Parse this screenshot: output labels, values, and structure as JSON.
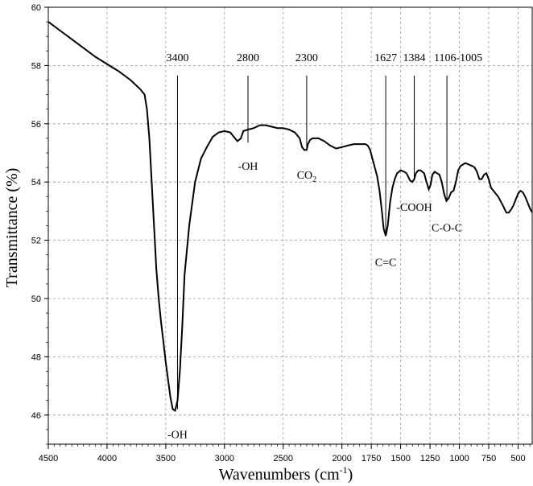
{
  "chart_data": {
    "type": "line",
    "xlabel_main": "Wavenumbers (cm",
    "xlabel_sup": "-1",
    "xlabel_end": ")",
    "ylabel": "Transmittance (%)",
    "xlim": [
      4500,
      380
    ],
    "ylim": [
      45,
      60
    ],
    "grid": true,
    "x_ticks": [
      4500,
      4000,
      3500,
      3000,
      2500,
      2000,
      1750,
      1500,
      1250,
      1000,
      750,
      500
    ],
    "y_ticks": [
      46,
      48,
      50,
      52,
      54,
      56,
      58,
      60
    ],
    "series": [
      {
        "points": [
          [
            4500,
            59.5
          ],
          [
            4400,
            59.2
          ],
          [
            4300,
            58.9
          ],
          [
            4200,
            58.6
          ],
          [
            4100,
            58.3
          ],
          [
            4000,
            58.05
          ],
          [
            3900,
            57.8
          ],
          [
            3800,
            57.5
          ],
          [
            3720,
            57.2
          ],
          [
            3680,
            57.0
          ],
          [
            3660,
            56.5
          ],
          [
            3640,
            55.5
          ],
          [
            3620,
            54.0
          ],
          [
            3600,
            52.5
          ],
          [
            3580,
            51.0
          ],
          [
            3560,
            50.0
          ],
          [
            3540,
            49.2
          ],
          [
            3520,
            48.5
          ],
          [
            3500,
            47.8
          ],
          [
            3480,
            47.2
          ],
          [
            3460,
            46.6
          ],
          [
            3440,
            46.2
          ],
          [
            3420,
            46.15
          ],
          [
            3400,
            46.5
          ],
          [
            3380,
            47.5
          ],
          [
            3360,
            49.0
          ],
          [
            3340,
            50.8
          ],
          [
            3300,
            52.5
          ],
          [
            3250,
            54.0
          ],
          [
            3200,
            54.8
          ],
          [
            3150,
            55.2
          ],
          [
            3100,
            55.55
          ],
          [
            3050,
            55.7
          ],
          [
            3000,
            55.75
          ],
          [
            2950,
            55.7
          ],
          [
            2920,
            55.55
          ],
          [
            2890,
            55.4
          ],
          [
            2860,
            55.5
          ],
          [
            2840,
            55.75
          ],
          [
            2800,
            55.8
          ],
          [
            2750,
            55.85
          ],
          [
            2700,
            55.95
          ],
          [
            2650,
            55.95
          ],
          [
            2600,
            55.9
          ],
          [
            2550,
            55.85
          ],
          [
            2500,
            55.85
          ],
          [
            2450,
            55.8
          ],
          [
            2400,
            55.7
          ],
          [
            2360,
            55.5
          ],
          [
            2340,
            55.2
          ],
          [
            2320,
            55.1
          ],
          [
            2300,
            55.1
          ],
          [
            2290,
            55.3
          ],
          [
            2270,
            55.45
          ],
          [
            2250,
            55.5
          ],
          [
            2200,
            55.5
          ],
          [
            2150,
            55.4
          ],
          [
            2100,
            55.25
          ],
          [
            2050,
            55.15
          ],
          [
            2000,
            55.2
          ],
          [
            1950,
            55.25
          ],
          [
            1900,
            55.3
          ],
          [
            1850,
            55.3
          ],
          [
            1800,
            55.3
          ],
          [
            1780,
            55.25
          ],
          [
            1760,
            55.1
          ],
          [
            1740,
            54.8
          ],
          [
            1720,
            54.5
          ],
          [
            1700,
            54.2
          ],
          [
            1680,
            53.7
          ],
          [
            1660,
            53.0
          ],
          [
            1645,
            52.4
          ],
          [
            1627,
            52.15
          ],
          [
            1610,
            52.5
          ],
          [
            1590,
            53.3
          ],
          [
            1570,
            53.8
          ],
          [
            1550,
            54.1
          ],
          [
            1530,
            54.3
          ],
          [
            1500,
            54.4
          ],
          [
            1470,
            54.35
          ],
          [
            1450,
            54.3
          ],
          [
            1420,
            54.05
          ],
          [
            1400,
            54.0
          ],
          [
            1384,
            54.1
          ],
          [
            1370,
            54.3
          ],
          [
            1350,
            54.4
          ],
          [
            1330,
            54.4
          ],
          [
            1300,
            54.3
          ],
          [
            1280,
            54.0
          ],
          [
            1260,
            53.75
          ],
          [
            1245,
            53.9
          ],
          [
            1230,
            54.25
          ],
          [
            1210,
            54.35
          ],
          [
            1190,
            54.3
          ],
          [
            1170,
            54.25
          ],
          [
            1150,
            54.0
          ],
          [
            1130,
            53.6
          ],
          [
            1110,
            53.35
          ],
          [
            1090,
            53.45
          ],
          [
            1070,
            53.65
          ],
          [
            1050,
            53.7
          ],
          [
            1030,
            54.0
          ],
          [
            1010,
            54.4
          ],
          [
            990,
            54.55
          ],
          [
            970,
            54.6
          ],
          [
            950,
            54.65
          ],
          [
            930,
            54.62
          ],
          [
            910,
            54.58
          ],
          [
            890,
            54.55
          ],
          [
            870,
            54.5
          ],
          [
            850,
            54.35
          ],
          [
            830,
            54.1
          ],
          [
            810,
            54.1
          ],
          [
            790,
            54.25
          ],
          [
            770,
            54.3
          ],
          [
            750,
            54.1
          ],
          [
            730,
            53.8
          ],
          [
            710,
            53.7
          ],
          [
            690,
            53.6
          ],
          [
            670,
            53.5
          ],
          [
            650,
            53.35
          ],
          [
            630,
            53.2
          ],
          [
            600,
            52.95
          ],
          [
            580,
            52.95
          ],
          [
            560,
            53.05
          ],
          [
            540,
            53.2
          ],
          [
            520,
            53.4
          ],
          [
            500,
            53.6
          ],
          [
            480,
            53.7
          ],
          [
            460,
            53.65
          ],
          [
            440,
            53.5
          ],
          [
            420,
            53.3
          ],
          [
            400,
            53.1
          ],
          [
            380,
            52.95
          ]
        ]
      }
    ],
    "annotations": [
      {
        "top_label": "3400",
        "x": 3400,
        "line_end_y": 46.2,
        "band_label": "-OH",
        "band_label_y": 45.6
      },
      {
        "top_label": "2800",
        "x": 2800,
        "line_end_y": 55.35,
        "band_label": "-OH",
        "band_label_y": 54.8
      },
      {
        "top_label": "2300",
        "x": 2300,
        "line_end_y": 55.15,
        "band_label": "CO",
        "band_label_sub": "2",
        "band_label_y": 54.5
      },
      {
        "top_label": "1627",
        "x": 1627,
        "line_end_y": 52.2,
        "band_label": "C=C",
        "band_label_y": 51.5
      },
      {
        "top_label": "1384",
        "x": 1384,
        "line_end_y": 54.05,
        "band_label": "-COOH",
        "band_label_y": 53.4
      },
      {
        "top_label": "1106-1005",
        "x": 1106,
        "line_end_y": 53.4,
        "band_label": "C-O-C",
        "band_label_y": 52.7
      }
    ]
  }
}
